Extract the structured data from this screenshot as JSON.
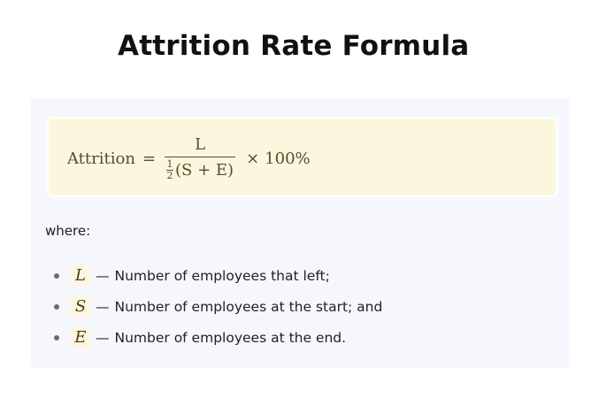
{
  "title": "Attrition Rate Formula",
  "formula": {
    "lhs": "Attrition",
    "equals": "=",
    "numerator": "L",
    "half_num": "1",
    "half_den": "2",
    "denominator": "(S + E)",
    "times": "×",
    "percent": "100%"
  },
  "where_label": "where:",
  "variables": [
    {
      "symbol": "L",
      "dash": "—",
      "description": "Number of employees that left;"
    },
    {
      "symbol": "S",
      "dash": "—",
      "description": "Number of employees at the start; and"
    },
    {
      "symbol": "E",
      "dash": "—",
      "description": "Number of employees at the end."
    }
  ],
  "colors": {
    "formula_background": "#fbf7df",
    "panel_background": "#f6f7fc",
    "formula_text": "#5b4a2a"
  }
}
